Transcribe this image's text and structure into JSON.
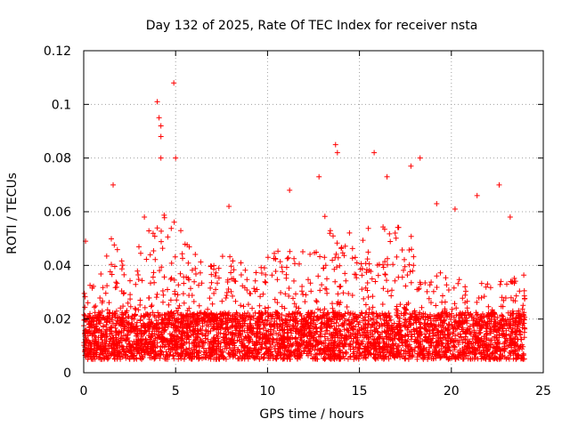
{
  "chart_data": {
    "type": "scatter",
    "title": "Day 132 of 2025, Rate Of TEC Index for receiver nsta",
    "xlabel": "GPS time / hours",
    "ylabel": "ROTI / TECUs",
    "xlim": [
      0,
      25
    ],
    "ylim": [
      0,
      0.12
    ],
    "x_ticks": [
      0,
      5,
      10,
      15,
      20,
      25
    ],
    "y_ticks": [
      0,
      0.02,
      0.04,
      0.06,
      0.08,
      0.1,
      0.12
    ],
    "x_tick_labels": [
      "0",
      "5",
      "10",
      "15",
      "20",
      "25"
    ],
    "y_tick_labels": [
      "0",
      "0.02",
      "0.04",
      "0.06",
      "0.08",
      "0.1",
      "0.12"
    ],
    "grid": true,
    "marker": "+",
    "color": "#ff0000",
    "series": [
      {
        "name": "ROTI",
        "x_range": [
          0,
          24
        ],
        "baseline_band": [
          0.005,
          0.03
        ],
        "notable_points": [
          {
            "x": 4.0,
            "y": 0.101
          },
          {
            "x": 4.1,
            "y": 0.095
          },
          {
            "x": 4.2,
            "y": 0.092
          },
          {
            "x": 4.2,
            "y": 0.088
          },
          {
            "x": 4.2,
            "y": 0.08
          },
          {
            "x": 4.9,
            "y": 0.108
          },
          {
            "x": 5.0,
            "y": 0.08
          },
          {
            "x": 1.6,
            "y": 0.07
          },
          {
            "x": 13.7,
            "y": 0.085
          },
          {
            "x": 13.8,
            "y": 0.082
          },
          {
            "x": 15.8,
            "y": 0.082
          },
          {
            "x": 18.3,
            "y": 0.08
          },
          {
            "x": 17.8,
            "y": 0.077
          },
          {
            "x": 22.6,
            "y": 0.07
          },
          {
            "x": 21.4,
            "y": 0.066
          },
          {
            "x": 11.2,
            "y": 0.068
          },
          {
            "x": 12.8,
            "y": 0.073
          },
          {
            "x": 16.5,
            "y": 0.073
          },
          {
            "x": 19.2,
            "y": 0.063
          },
          {
            "x": 20.2,
            "y": 0.061
          },
          {
            "x": 23.2,
            "y": 0.058
          },
          {
            "x": 7.9,
            "y": 0.062
          },
          {
            "x": 3.3,
            "y": 0.058
          },
          {
            "x": 0.1,
            "y": 0.049
          }
        ]
      }
    ]
  }
}
